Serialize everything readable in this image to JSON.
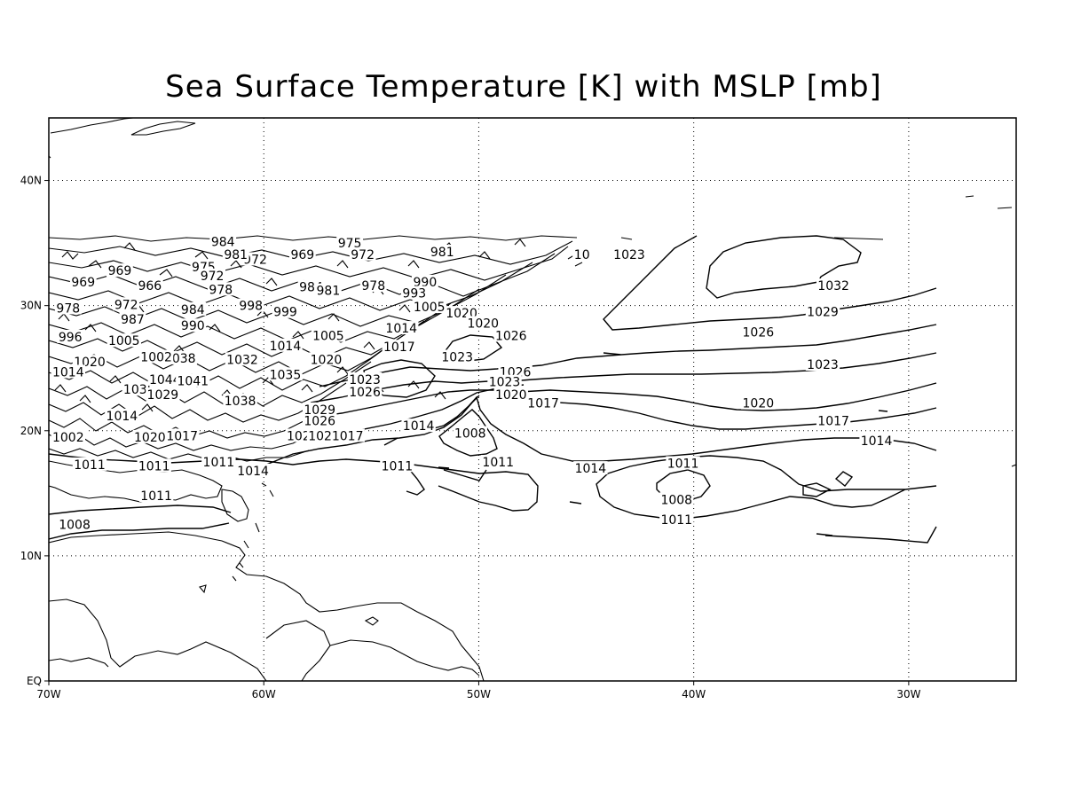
{
  "title": "Sea Surface Temperature [K] with MSLP [mb]",
  "map": {
    "lon_range": [
      -70,
      -25
    ],
    "lat_range": [
      0,
      45
    ],
    "x_ticks": [
      {
        "lon": -70,
        "label": "70W"
      },
      {
        "lon": -60,
        "label": "60W"
      },
      {
        "lon": -50,
        "label": "50W"
      },
      {
        "lon": -40,
        "label": "40W"
      },
      {
        "lon": -30,
        "label": "30W"
      }
    ],
    "y_ticks": [
      {
        "lat": 0,
        "label": "EQ"
      },
      {
        "lat": 10,
        "label": "10N"
      },
      {
        "lat": 20,
        "label": "20N"
      },
      {
        "lat": 30,
        "label": "30N"
      },
      {
        "lat": 40,
        "label": "40N"
      }
    ],
    "grid": "dotted",
    "contour_field": "MSLP",
    "contour_unit": "mb",
    "contour_color": "#000000",
    "contour_labels": [
      {
        "text": "1032",
        "lon": -33.5,
        "lat": 31.6
      },
      {
        "text": "1029",
        "lon": -34.0,
        "lat": 29.5
      },
      {
        "text": "1026",
        "lon": -37.0,
        "lat": 27.9
      },
      {
        "text": "1023",
        "lon": -34.0,
        "lat": 25.3
      },
      {
        "text": "1020",
        "lon": -37.0,
        "lat": 22.2
      },
      {
        "text": "1017",
        "lon": -33.5,
        "lat": 20.8
      },
      {
        "text": "1014",
        "lon": -31.5,
        "lat": 19.2
      },
      {
        "text": "1011",
        "lon": -40.5,
        "lat": 17.4
      },
      {
        "text": "1014",
        "lon": -44.8,
        "lat": 17.0
      },
      {
        "text": "1008",
        "lon": -40.8,
        "lat": 14.5
      },
      {
        "text": "1011",
        "lon": -40.8,
        "lat": 12.9
      },
      {
        "text": "1026",
        "lon": -48.3,
        "lat": 24.7
      },
      {
        "text": "1023",
        "lon": -48.8,
        "lat": 23.9
      },
      {
        "text": "1020",
        "lon": -48.5,
        "lat": 22.9
      },
      {
        "text": "1017",
        "lon": -47.0,
        "lat": 22.2
      },
      {
        "text": "1023",
        "lon": -51.0,
        "lat": 25.9
      },
      {
        "text": "1026",
        "lon": -48.5,
        "lat": 27.6
      },
      {
        "text": "1014",
        "lon": -52.8,
        "lat": 20.4
      },
      {
        "text": "1008",
        "lon": -50.4,
        "lat": 19.8
      },
      {
        "text": "1011",
        "lon": -49.1,
        "lat": 17.5
      },
      {
        "text": "1011",
        "lon": -53.8,
        "lat": 17.2
      },
      {
        "text": "1014",
        "lon": -60.5,
        "lat": 16.8
      },
      {
        "text": "1011",
        "lon": -62.1,
        "lat": 17.5
      },
      {
        "text": "1011",
        "lon": -65.0,
        "lat": 14.8
      },
      {
        "text": "1008",
        "lon": -68.8,
        "lat": 12.5
      },
      {
        "text": "1011",
        "lon": -68.1,
        "lat": 17.3
      },
      {
        "text": "1011",
        "lon": -65.1,
        "lat": 17.2
      },
      {
        "text": "1002",
        "lon": -69.1,
        "lat": 19.5
      },
      {
        "text": "1020",
        "lon": -65.3,
        "lat": 19.5
      },
      {
        "text": "1017",
        "lon": -63.8,
        "lat": 19.6
      },
      {
        "text": "1014",
        "lon": -66.6,
        "lat": 21.2
      },
      {
        "text": "1023",
        "lon": -58.2,
        "lat": 19.6
      },
      {
        "text": "1020",
        "lon": -57.2,
        "lat": 19.6
      },
      {
        "text": "1017",
        "lon": -56.1,
        "lat": 19.6
      },
      {
        "text": "1026",
        "lon": -57.4,
        "lat": 20.8
      },
      {
        "text": "1029",
        "lon": -57.4,
        "lat": 21.7
      },
      {
        "text": "1038",
        "lon": -61.1,
        "lat": 22.4
      },
      {
        "text": "1035",
        "lon": -65.8,
        "lat": 23.3
      },
      {
        "text": "1029",
        "lon": -64.7,
        "lat": 22.9
      },
      {
        "text": "1044",
        "lon": -64.6,
        "lat": 24.1
      },
      {
        "text": "1041",
        "lon": -63.3,
        "lat": 24.0
      },
      {
        "text": "1026",
        "lon": -55.3,
        "lat": 23.1
      },
      {
        "text": "1023",
        "lon": -55.3,
        "lat": 24.1
      },
      {
        "text": "1035",
        "lon": -59.0,
        "lat": 24.5
      },
      {
        "text": "1032",
        "lon": -61.0,
        "lat": 25.7
      },
      {
        "text": "1038",
        "lon": -63.9,
        "lat": 25.8
      },
      {
        "text": "1020",
        "lon": -68.1,
        "lat": 25.5
      },
      {
        "text": "1014",
        "lon": -69.1,
        "lat": 24.7
      },
      {
        "text": "1020",
        "lon": -57.1,
        "lat": 25.7
      },
      {
        "text": "1017",
        "lon": -53.7,
        "lat": 26.7
      },
      {
        "text": "1014",
        "lon": -53.6,
        "lat": 28.2
      },
      {
        "text": "1014",
        "lon": -59.0,
        "lat": 26.8
      },
      {
        "text": "1005",
        "lon": -57.0,
        "lat": 27.6
      },
      {
        "text": "1005",
        "lon": -66.5,
        "lat": 27.2
      },
      {
        "text": "1002",
        "lon": -65.0,
        "lat": 25.9
      },
      {
        "text": "1005",
        "lon": -52.3,
        "lat": 29.9
      },
      {
        "text": "1020",
        "lon": -50.8,
        "lat": 29.4
      },
      {
        "text": "1020",
        "lon": -49.8,
        "lat": 28.6
      },
      {
        "text": "990",
        "lon": -63.3,
        "lat": 28.4
      },
      {
        "text": "987",
        "lon": -66.1,
        "lat": 28.9
      },
      {
        "text": "984",
        "lon": -63.3,
        "lat": 29.7
      },
      {
        "text": "999",
        "lon": -59.0,
        "lat": 29.5
      },
      {
        "text": "998",
        "lon": -60.6,
        "lat": 30.0
      },
      {
        "text": "996",
        "lon": -69.0,
        "lat": 27.5
      },
      {
        "text": "972",
        "lon": -66.4,
        "lat": 30.1
      },
      {
        "text": "978",
        "lon": -69.1,
        "lat": 29.8
      },
      {
        "text": "966",
        "lon": -65.3,
        "lat": 31.6
      },
      {
        "text": "969",
        "lon": -68.4,
        "lat": 31.9
      },
      {
        "text": "969",
        "lon": -66.7,
        "lat": 32.8
      },
      {
        "text": "978",
        "lon": -62.0,
        "lat": 31.3
      },
      {
        "text": "984",
        "lon": -57.8,
        "lat": 31.5
      },
      {
        "text": "981",
        "lon": -57.0,
        "lat": 31.2
      },
      {
        "text": "978",
        "lon": -54.9,
        "lat": 31.6
      },
      {
        "text": "990",
        "lon": -52.5,
        "lat": 31.9
      },
      {
        "text": "993",
        "lon": -53.0,
        "lat": 31.0
      },
      {
        "text": "975",
        "lon": -62.8,
        "lat": 33.1
      },
      {
        "text": "972",
        "lon": -62.4,
        "lat": 32.4
      },
      {
        "text": "972",
        "lon": -60.4,
        "lat": 33.7
      },
      {
        "text": "981",
        "lon": -61.3,
        "lat": 34.1
      },
      {
        "text": "984",
        "lon": -61.9,
        "lat": 35.1
      },
      {
        "text": "969",
        "lon": -58.2,
        "lat": 34.1
      },
      {
        "text": "975",
        "lon": -56.0,
        "lat": 35.0
      },
      {
        "text": "972",
        "lon": -55.4,
        "lat": 34.1
      },
      {
        "text": "981",
        "lon": -51.7,
        "lat": 34.3
      },
      {
        "text": "1023",
        "lon": -43.0,
        "lat": 34.1
      },
      {
        "text": "10",
        "lon": -45.2,
        "lat": 34.1
      }
    ]
  }
}
